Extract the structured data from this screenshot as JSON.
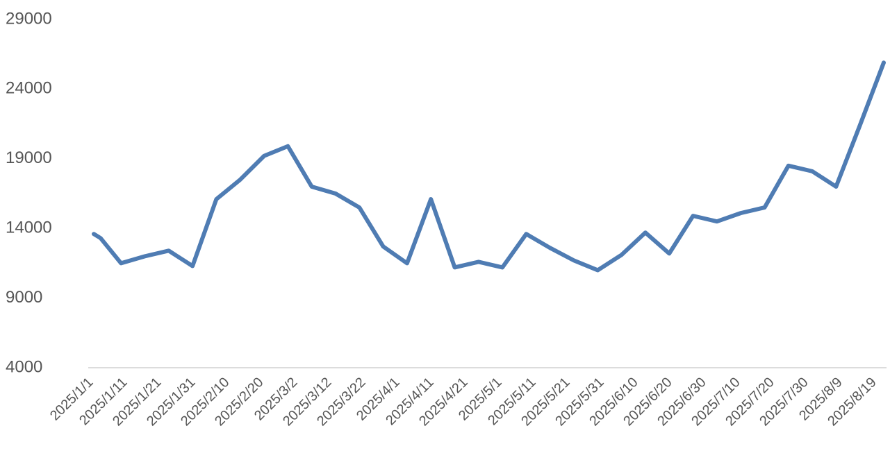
{
  "chart_data": {
    "type": "line",
    "x": [
      "2025/1/1",
      "2025/1/3",
      "2025/1/9",
      "2025/1/16",
      "2025/1/23",
      "2025/1/30",
      "2025/2/6",
      "2025/2/13",
      "2025/2/20",
      "2025/2/27",
      "2025/3/6",
      "2025/3/13",
      "2025/3/20",
      "2025/3/27",
      "2025/4/3",
      "2025/4/10",
      "2025/4/17",
      "2025/4/24",
      "2025/5/1",
      "2025/5/8",
      "2025/5/15",
      "2025/5/22",
      "2025/5/29",
      "2025/6/5",
      "2025/6/12",
      "2025/6/19",
      "2025/6/26",
      "2025/7/3",
      "2025/7/10",
      "2025/7/17",
      "2025/7/24",
      "2025/7/31",
      "2025/8/7",
      "2025/8/14",
      "2025/8/21"
    ],
    "series": [
      {
        "color": "#4f7cb3",
        "values": [
          13600,
          13300,
          11500,
          12000,
          12400,
          11300,
          16100,
          17500,
          19200,
          19900,
          17000,
          16500,
          15500,
          12700,
          11500,
          16100,
          11200,
          11600,
          11200,
          13600,
          12600,
          11700,
          11000,
          12100,
          13700,
          12200,
          14900,
          14500,
          15100,
          15500,
          18500,
          18100,
          17000,
          21400,
          25900
        ]
      }
    ],
    "xlim": [
      "2025/1/1",
      "2025/8/21"
    ],
    "xticks": [
      "2025/1/1",
      "2025/1/11",
      "2025/1/21",
      "2025/1/31",
      "2025/2/10",
      "2025/2/20",
      "2025/3/2",
      "2025/3/12",
      "2025/3/22",
      "2025/4/1",
      "2025/4/11",
      "2025/4/21",
      "2025/5/1",
      "2025/5/11",
      "2025/5/21",
      "2025/5/31",
      "2025/6/10",
      "2025/6/20",
      "2025/6/30",
      "2025/7/10",
      "2025/7/20",
      "2025/7/30",
      "2025/8/9",
      "2025/8/19"
    ],
    "ylim": [
      4000,
      29000
    ],
    "yticks": [
      4000,
      9000,
      14000,
      19000,
      24000,
      29000
    ],
    "grid": false
  }
}
